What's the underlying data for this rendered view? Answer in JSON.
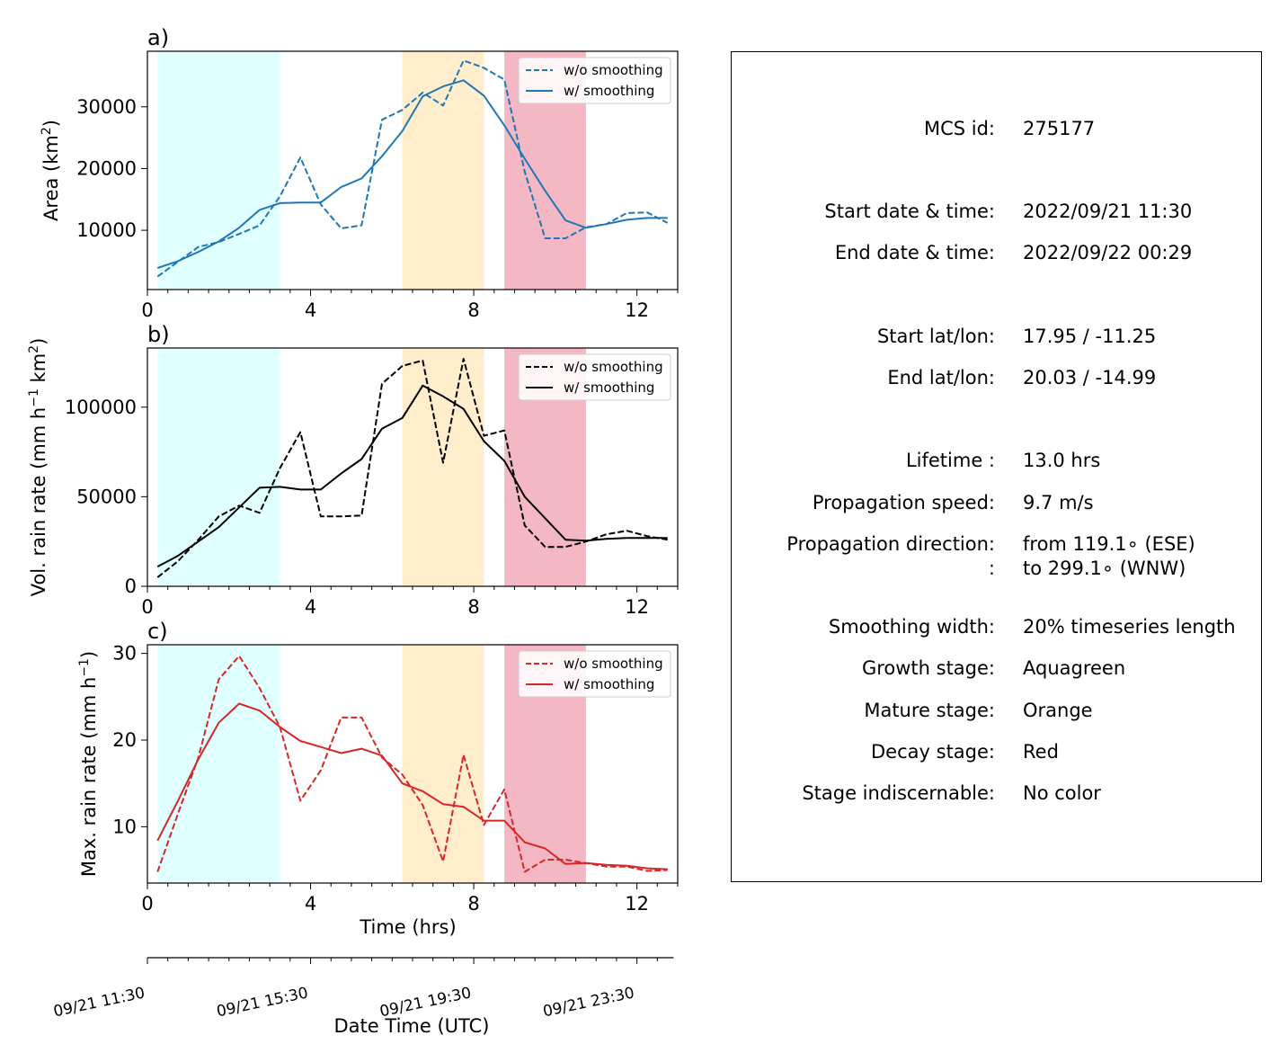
{
  "chart_data": [
    {
      "type": "line",
      "panel_label": "a)",
      "ylabel": "Area  (km²)",
      "ylabel_main": "Area  (km",
      "ylabel_sup": "2",
      "ylabel_end": ")",
      "xlabel": "",
      "xlim": [
        0,
        13
      ],
      "ylim": [
        400,
        39000
      ],
      "x_ticks": [
        0,
        4,
        8,
        12
      ],
      "y_ticks": [
        10000,
        20000,
        30000
      ],
      "legend_position": "top-right",
      "color": "#1f77b4",
      "x": [
        0.25,
        0.75,
        1.25,
        1.75,
        2.25,
        2.75,
        3.25,
        3.75,
        4.25,
        4.75,
        5.25,
        5.75,
        6.25,
        6.75,
        7.25,
        7.75,
        8.25,
        8.75,
        9.25,
        9.75,
        10.25,
        10.75,
        11.25,
        11.75,
        12.25,
        12.75
      ],
      "series": [
        {
          "name": "w/o smoothing",
          "style": "dashed",
          "values": [
            2500,
            4900,
            7300,
            8100,
            9400,
            10800,
            15500,
            21800,
            14200,
            10300,
            10800,
            27900,
            29500,
            32300,
            30200,
            37500,
            36300,
            34400,
            19500,
            8700,
            8700,
            10500,
            11000,
            12800,
            12900,
            11200
          ]
        },
        {
          "name": "w/ smoothing",
          "style": "solid",
          "values": [
            3900,
            5000,
            6500,
            8200,
            10400,
            13300,
            14400,
            14500,
            14500,
            17000,
            18400,
            22000,
            26100,
            31700,
            33300,
            34300,
            31800,
            27000,
            21600,
            16400,
            11600,
            10400,
            11000,
            11700,
            12000,
            12000
          ]
        }
      ]
    },
    {
      "type": "line",
      "panel_label": "b)",
      "ylabel": "Vol. rain rate (mm h⁻¹ km²)",
      "ylabel_main": "Vol. rain rate (mm h",
      "ylabel_sup": "−1",
      "ylabel_mid": " km",
      "ylabel_sup2": "2",
      "ylabel_end": ")",
      "xlabel": "",
      "xlim": [
        0,
        13
      ],
      "ylim": [
        0,
        133000
      ],
      "x_ticks": [
        0,
        4,
        8,
        12
      ],
      "y_ticks": [
        0,
        50000,
        100000
      ],
      "legend_position": "top-right",
      "color": "#000000",
      "x": [
        0.25,
        0.75,
        1.25,
        1.75,
        2.25,
        2.75,
        3.25,
        3.75,
        4.25,
        4.75,
        5.25,
        5.75,
        6.25,
        6.75,
        7.25,
        7.75,
        8.25,
        8.75,
        9.25,
        9.75,
        10.25,
        10.75,
        11.25,
        11.75,
        12.25,
        12.75
      ],
      "series": [
        {
          "name": "w/o smoothing",
          "style": "dashed",
          "values": [
            5000,
            14000,
            26000,
            39000,
            45000,
            41000,
            66000,
            86000,
            39000,
            39000,
            39500,
            113000,
            123000,
            126000,
            69000,
            127000,
            84000,
            87000,
            34000,
            22000,
            22000,
            25000,
            29000,
            31000,
            28000,
            26000
          ]
        },
        {
          "name": "w/ smoothing",
          "style": "solid",
          "values": [
            11000,
            17000,
            25000,
            33000,
            44000,
            55000,
            55500,
            54000,
            54000,
            63000,
            71000,
            88000,
            94000,
            112000,
            106000,
            99000,
            81000,
            70000,
            50000,
            38000,
            26000,
            25500,
            26500,
            27000,
            27000,
            27000
          ]
        }
      ]
    },
    {
      "type": "line",
      "panel_label": "c)",
      "ylabel": "Max. rain rate  (mm h⁻¹)",
      "ylabel_main": "Max. rain rate  (mm h",
      "ylabel_sup": "−1",
      "ylabel_end": ")",
      "xlabel": "Time (hrs)",
      "xlim": [
        0,
        13
      ],
      "ylim": [
        3.5,
        31
      ],
      "x_ticks": [
        0,
        4,
        8,
        12
      ],
      "y_ticks": [
        10,
        20,
        30
      ],
      "legend_position": "top-right",
      "color": "#d62728",
      "x": [
        0.25,
        0.75,
        1.25,
        1.75,
        2.25,
        2.75,
        3.25,
        3.75,
        4.25,
        4.75,
        5.25,
        5.75,
        6.25,
        6.75,
        7.25,
        7.75,
        8.25,
        8.75,
        9.25,
        9.75,
        10.25,
        10.75,
        11.25,
        11.75,
        12.25,
        12.75
      ],
      "series": [
        {
          "name": "w/o smoothing",
          "style": "dashed",
          "values": [
            4.8,
            11.5,
            18.0,
            27.0,
            29.7,
            26.0,
            21.5,
            13.0,
            16.5,
            22.6,
            22.6,
            18.0,
            16.0,
            12.5,
            6.0,
            18.3,
            10.2,
            14.3,
            4.8,
            6.2,
            6.2,
            5.8,
            5.4,
            5.4,
            4.9,
            5.0
          ]
        },
        {
          "name": "w/ smoothing",
          "style": "solid",
          "values": [
            8.4,
            13.0,
            17.8,
            22.0,
            24.2,
            23.4,
            21.5,
            19.9,
            19.2,
            18.5,
            19.0,
            18.2,
            15.0,
            14.1,
            12.6,
            12.3,
            10.7,
            10.7,
            8.2,
            7.5,
            5.7,
            5.8,
            5.6,
            5.5,
            5.2,
            5.1
          ]
        }
      ]
    }
  ],
  "stages": [
    {
      "name": "growth",
      "start": 0.25,
      "end": 3.25,
      "color": "#e0ffff"
    },
    {
      "name": "mature",
      "start": 6.25,
      "end": 8.25,
      "color": "#ffedcc"
    },
    {
      "name": "decay",
      "start": 8.75,
      "end": 10.75,
      "color": "#f4b8c4"
    }
  ],
  "datetime_axis": {
    "xlabel": "Date Time (UTC)",
    "tick_hours": [
      0,
      4,
      8,
      12
    ],
    "tick_labels": [
      "09/21 11:30",
      "09/21 15:30",
      "09/21 19:30",
      "09/21 23:30"
    ]
  },
  "info": {
    "mcs_id_label": "MCS id:",
    "mcs_id_value": "275177",
    "start_time_label": "Start date & time:",
    "start_time_value": "2022/09/21 11:30",
    "end_time_label": "End date & time:",
    "end_time_value": "2022/09/22 00:29",
    "start_latlon_label": "Start lat/lon:",
    "start_latlon_value": "17.95 / -11.25",
    "end_latlon_label": "End lat/lon:",
    "end_latlon_value": "20.03 / -14.99",
    "lifetime_label": "Lifetime :",
    "lifetime_value": "13.0 hrs",
    "prop_speed_label": "Propagation speed:",
    "prop_speed_value": "9.7 m/s",
    "prop_dir_label": "Propagation direction:",
    "prop_dir_value": "from 119.1∘ (ESE)",
    "prop_dir_label2": ":",
    "prop_dir_value2": "to   299.1∘ (WNW)",
    "smoothing_label": "Smoothing width:",
    "smoothing_value": "20% timeseries length",
    "growth_label": "Growth stage:",
    "growth_value": "Aquagreen",
    "mature_label": "Mature stage:",
    "mature_value": "Orange",
    "decay_label": "Decay stage:",
    "decay_value": "Red",
    "indisc_label": "Stage indiscernable:",
    "indisc_value": "No color"
  }
}
